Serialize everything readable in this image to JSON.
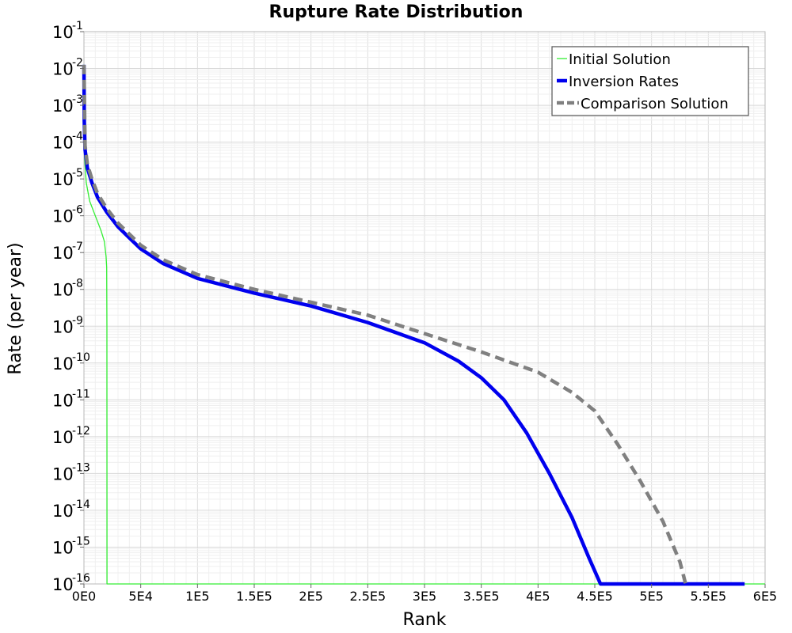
{
  "chart_data": {
    "type": "line",
    "title": "Rupture Rate Distribution",
    "xlabel": "Rank",
    "ylabel": "Rate (per year)",
    "xlim": [
      0,
      600000
    ],
    "ylim_log10": [
      -16,
      -1
    ],
    "y_scale": "log",
    "x_ticks": [
      {
        "value": 0,
        "label": "0E0"
      },
      {
        "value": 50000,
        "label": "5E4"
      },
      {
        "value": 100000,
        "label": "1E5"
      },
      {
        "value": 150000,
        "label": "1.5E5"
      },
      {
        "value": 200000,
        "label": "2E5"
      },
      {
        "value": 250000,
        "label": "2.5E5"
      },
      {
        "value": 300000,
        "label": "3E5"
      },
      {
        "value": 350000,
        "label": "3.5E5"
      },
      {
        "value": 400000,
        "label": "4E5"
      },
      {
        "value": 450000,
        "label": "4.5E5"
      },
      {
        "value": 500000,
        "label": "5E5"
      },
      {
        "value": 550000,
        "label": "5.5E5"
      },
      {
        "value": 600000,
        "label": "6E5"
      }
    ],
    "y_ticks": [
      {
        "exp": -1,
        "base": "10",
        "sup": "-1"
      },
      {
        "exp": -2,
        "base": "10",
        "sup": "-2"
      },
      {
        "exp": -3,
        "base": "10",
        "sup": "-3"
      },
      {
        "exp": -4,
        "base": "10",
        "sup": "-4"
      },
      {
        "exp": -5,
        "base": "10",
        "sup": "-5"
      },
      {
        "exp": -6,
        "base": "10",
        "sup": "-6"
      },
      {
        "exp": -7,
        "base": "10",
        "sup": "-7"
      },
      {
        "exp": -8,
        "base": "10",
        "sup": "-8"
      },
      {
        "exp": -9,
        "base": "10",
        "sup": "-9"
      },
      {
        "exp": -10,
        "base": "10",
        "sup": "-10"
      },
      {
        "exp": -11,
        "base": "10",
        "sup": "-11"
      },
      {
        "exp": -12,
        "base": "10",
        "sup": "-12"
      },
      {
        "exp": -13,
        "base": "10",
        "sup": "-13"
      },
      {
        "exp": -14,
        "base": "10",
        "sup": "-14"
      },
      {
        "exp": -15,
        "base": "10",
        "sup": "-15"
      },
      {
        "exp": -16,
        "base": "10",
        "sup": "-16"
      }
    ],
    "grid": true,
    "legend_position": "top-right",
    "series": [
      {
        "name": "Initial Solution",
        "color": "#33ee33",
        "line_style": "solid",
        "width": "thin",
        "points": [
          [
            0,
            -1.9
          ],
          [
            200,
            -3.6
          ],
          [
            700,
            -4.5
          ],
          [
            2000,
            -5.1
          ],
          [
            5000,
            -5.6
          ],
          [
            10000,
            -6.0
          ],
          [
            15000,
            -6.4
          ],
          [
            18000,
            -6.7
          ],
          [
            19500,
            -7.1
          ],
          [
            20000,
            -7.4
          ],
          [
            20200,
            -9.0
          ],
          [
            20300,
            -16.0
          ],
          [
            600000,
            -16.0
          ]
        ]
      },
      {
        "name": "Inversion Rates",
        "color": "#0000ee",
        "line_style": "solid",
        "width": "thick",
        "points": [
          [
            0,
            -1.9
          ],
          [
            300,
            -3.4
          ],
          [
            1000,
            -4.2
          ],
          [
            3000,
            -4.7
          ],
          [
            7000,
            -5.1
          ],
          [
            12000,
            -5.5
          ],
          [
            20000,
            -5.9
          ],
          [
            30000,
            -6.3
          ],
          [
            40000,
            -6.6
          ],
          [
            50000,
            -6.9
          ],
          [
            70000,
            -7.3
          ],
          [
            100000,
            -7.7
          ],
          [
            150000,
            -8.1
          ],
          [
            200000,
            -8.45
          ],
          [
            250000,
            -8.9
          ],
          [
            300000,
            -9.45
          ],
          [
            330000,
            -9.95
          ],
          [
            350000,
            -10.4
          ],
          [
            370000,
            -11.0
          ],
          [
            390000,
            -11.9
          ],
          [
            410000,
            -13.0
          ],
          [
            430000,
            -14.2
          ],
          [
            445000,
            -15.3
          ],
          [
            455000,
            -16.0
          ],
          [
            582000,
            -16.0
          ]
        ]
      },
      {
        "name": "Comparison Solution",
        "color": "#808080",
        "line_style": "dashed",
        "width": "thick",
        "points": [
          [
            0,
            -1.9
          ],
          [
            1000,
            -4.1
          ],
          [
            3000,
            -4.6
          ],
          [
            7000,
            -5.0
          ],
          [
            12000,
            -5.4
          ],
          [
            20000,
            -5.8
          ],
          [
            30000,
            -6.2
          ],
          [
            40000,
            -6.5
          ],
          [
            50000,
            -6.8
          ],
          [
            70000,
            -7.2
          ],
          [
            100000,
            -7.6
          ],
          [
            150000,
            -8.0
          ],
          [
            200000,
            -8.35
          ],
          [
            250000,
            -8.7
          ],
          [
            300000,
            -9.2
          ],
          [
            350000,
            -9.7
          ],
          [
            400000,
            -10.25
          ],
          [
            430000,
            -10.8
          ],
          [
            450000,
            -11.3
          ],
          [
            470000,
            -12.2
          ],
          [
            490000,
            -13.2
          ],
          [
            510000,
            -14.3
          ],
          [
            525000,
            -15.4
          ],
          [
            530000,
            -16.0
          ]
        ]
      }
    ]
  }
}
